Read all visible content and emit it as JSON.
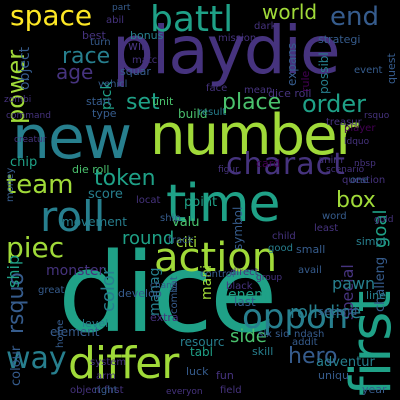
{
  "words": [
    "dice",
    "playdie",
    "new",
    "number",
    "time",
    "first",
    "roll",
    "differ",
    "action",
    "battl",
    "space",
    "world",
    "end",
    "charact",
    "place",
    "order",
    "team",
    "token",
    "set",
    "power",
    "piec",
    "round",
    "color",
    "oppon",
    "way",
    "hero",
    "side",
    "rsquo",
    "box",
    "goal",
    "citi",
    "valu",
    "score",
    "race",
    "special",
    "roll dice",
    "manag",
    "skill",
    "resourc",
    "tabl",
    "monster",
    "ship",
    "chip",
    "object",
    "rule",
    "player",
    "combat",
    "pawn",
    "enemi",
    "last",
    "mani",
    "small",
    "age",
    "unit",
    "build",
    "result",
    "bonus",
    "win",
    "turn",
    "pick",
    "start",
    "type",
    "chang",
    "vehicl",
    "dice roll",
    "die roll",
    "card",
    "treasur",
    "expans",
    "possibl",
    "strategi",
    "quest",
    "event",
    "movement",
    "challeng",
    "develop",
    "anim",
    "element",
    "home",
    "level",
    "extra",
    "great",
    "second",
    "six sid",
    "ndash",
    "adventur",
    "fun",
    "luck",
    "field",
    "year",
    "addit",
    "colour",
    "system",
    "uniqu",
    "line",
    "object first",
    "right",
    "avail",
    "direct",
    "good",
    "simpl",
    "least",
    "child",
    "word",
    "track",
    "point",
    "locat",
    "ship",
    "symbol",
    "mission",
    "best",
    "part",
    "dark",
    "abil",
    "match",
    "squar",
    "face",
    "mean",
    "command",
    "money",
    "creatur",
    "nbsp",
    "zombi",
    "rsquo",
    "figur",
    "question",
    "scenario",
    "control",
    "black",
    "group",
    "one",
    "ldquo",
    "arm",
    "gold",
    "everyon"
  ]
}
